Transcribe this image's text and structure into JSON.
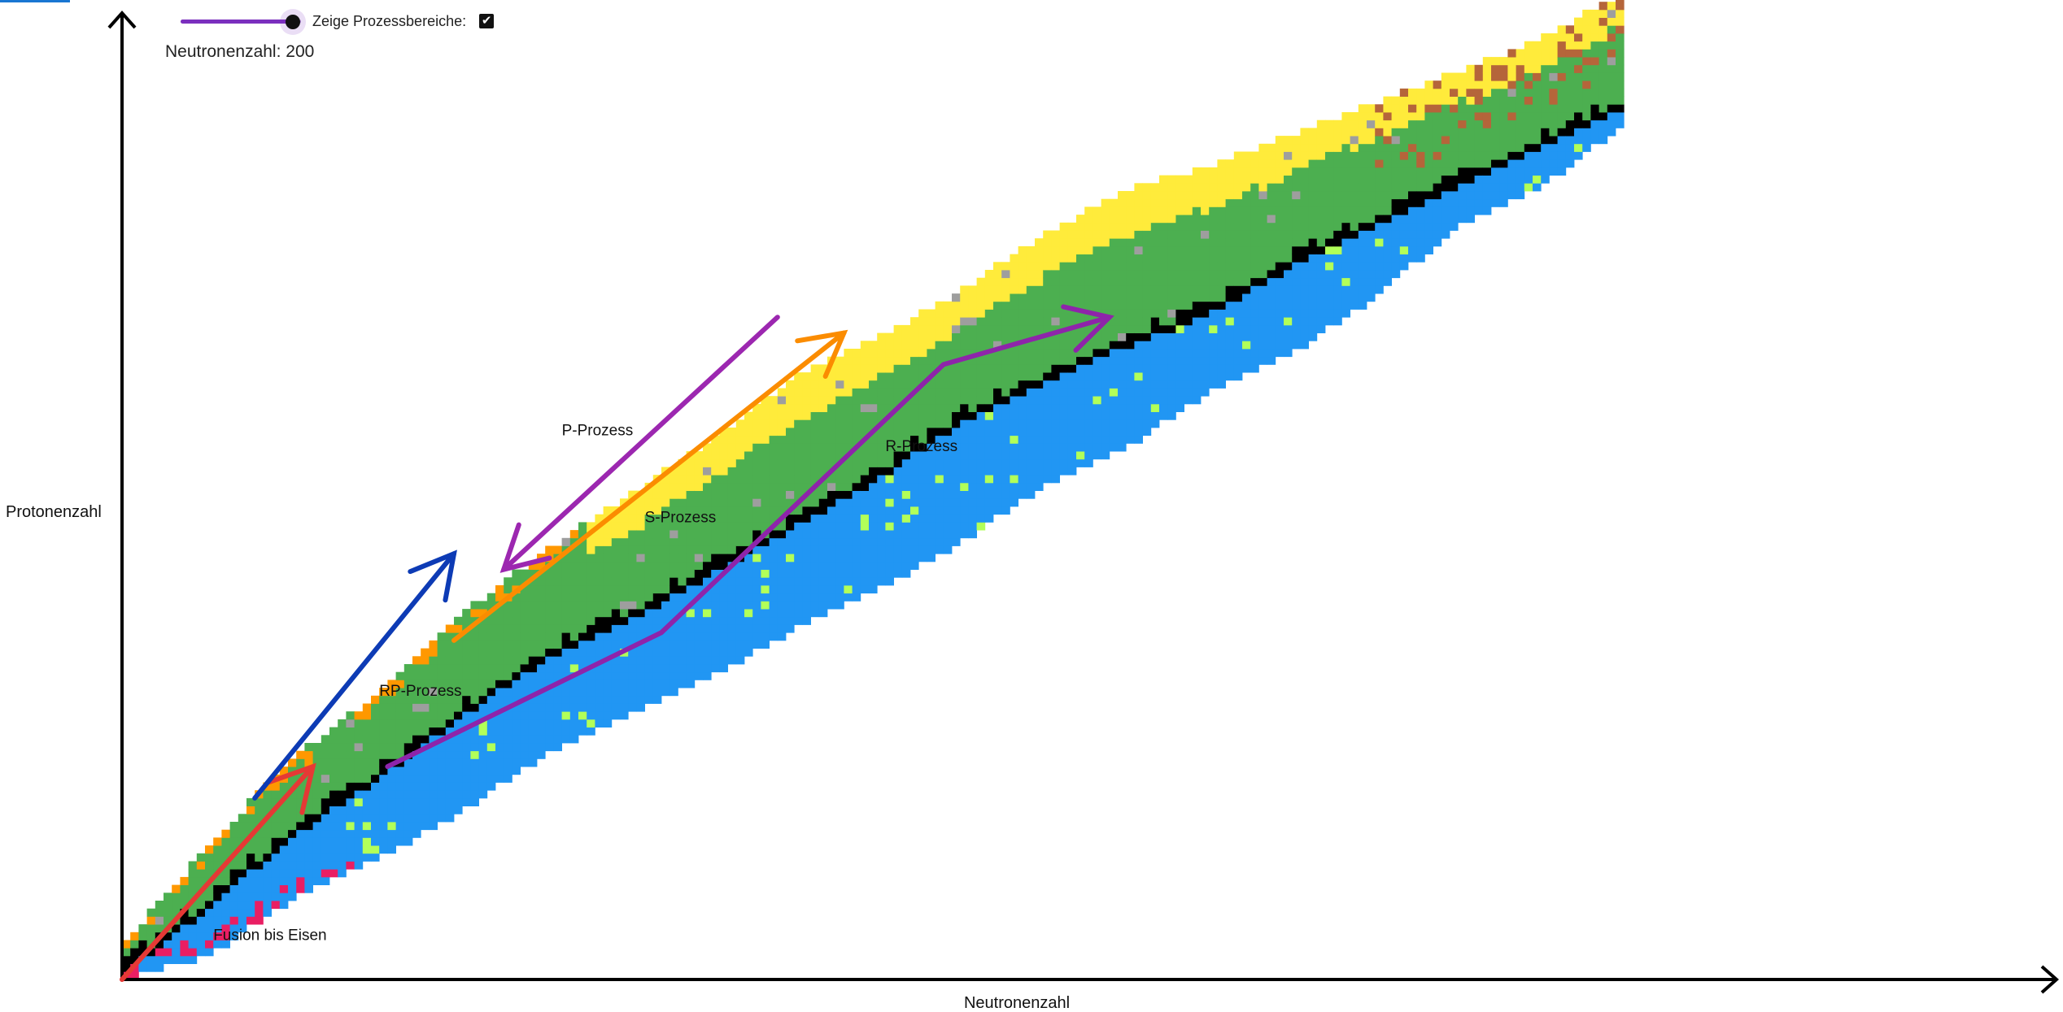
{
  "controls": {
    "neutron_slider": {
      "label": "Neutronenzahl",
      "value": 200,
      "min": 0,
      "max": 215
    },
    "status_text": "Neutronenzahl: 200",
    "process_toggle_label": "Zeige Prozessbereiche:",
    "process_toggle_checked": true
  },
  "colors": {
    "accent": "#7b2fbe",
    "stable": "#000000",
    "beta_minus": "#2196f3",
    "beta_plus": "#4caf50",
    "alpha": "#ffeb3b",
    "proton_emission": "#ff9800",
    "neutron_emission": "#e91e63",
    "fission": "#b5653a",
    "unknown": "#9e9e9e",
    "other": "#b2ff59"
  },
  "chart_data": {
    "type": "heatmap",
    "title": "",
    "xlabel": "Neutronenzahl",
    "ylabel": "Protonenzahl",
    "xlim": [
      0,
      190
    ],
    "ylim": [
      0,
      125
    ],
    "grid": false,
    "legend": "none",
    "band": [
      {
        "n": 0,
        "z_min": 0,
        "z_max": 4,
        "z_stable": 1
      },
      {
        "n": 10,
        "z_min": 3,
        "z_max": 16,
        "z_stable": 9
      },
      {
        "n": 20,
        "z_min": 10,
        "z_max": 27,
        "z_stable": 18
      },
      {
        "n": 30,
        "z_min": 15,
        "z_max": 35,
        "z_stable": 25
      },
      {
        "n": 40,
        "z_min": 21,
        "z_max": 45,
        "z_stable": 33
      },
      {
        "n": 50,
        "z_min": 28,
        "z_max": 53,
        "z_stable": 40
      },
      {
        "n": 60,
        "z_min": 33,
        "z_max": 60,
        "z_stable": 45
      },
      {
        "n": 70,
        "z_min": 38,
        "z_max": 67,
        "z_stable": 51
      },
      {
        "n": 80,
        "z_min": 44,
        "z_max": 75,
        "z_stable": 57
      },
      {
        "n": 90,
        "z_min": 49,
        "z_max": 80,
        "z_stable": 63
      },
      {
        "n": 100,
        "z_min": 55,
        "z_max": 86,
        "z_stable": 70
      },
      {
        "n": 110,
        "z_min": 62,
        "z_max": 93,
        "z_stable": 75
      },
      {
        "n": 120,
        "z_min": 67,
        "z_max": 99,
        "z_stable": 80
      },
      {
        "n": 130,
        "z_min": 74,
        "z_max": 102,
        "z_stable": 84
      },
      {
        "n": 140,
        "z_min": 79,
        "z_max": 106,
        "z_stable": 90
      },
      {
        "n": 150,
        "z_min": 86,
        "z_max": 110,
        "z_stable": 95
      },
      {
        "n": 160,
        "z_min": 95,
        "z_max": 114,
        "z_stable": 100
      },
      {
        "n": 170,
        "z_min": 100,
        "z_max": 118,
        "z_stable": 105
      },
      {
        "n": 180,
        "z_min": 108,
        "z_max": 124,
        "z_stable": 110
      }
    ],
    "processes": [
      {
        "name": "Fusion bis Eisen",
        "color": "#e53935",
        "label_at": [
          11,
          5
        ],
        "path": [
          [
            0,
            0
          ],
          [
            23,
            27
          ]
        ]
      },
      {
        "name": "RP-Prozess",
        "color": "#0d3bb5",
        "label_at": [
          31,
          36
        ],
        "path": [
          [
            16,
            23
          ],
          [
            40,
            54
          ]
        ]
      },
      {
        "name": "P-Prozess",
        "color": "#9c27b0",
        "label_at": [
          53,
          69
        ],
        "path": [
          [
            79,
            84
          ],
          [
            46,
            52
          ]
        ]
      },
      {
        "name": "S-Prozess",
        "color": "#fb8c00",
        "label_at": [
          63,
          58
        ],
        "path": [
          [
            40,
            43
          ],
          [
            87,
            82
          ]
        ]
      },
      {
        "name": "R-Prozess",
        "color": "#8e24aa",
        "label_at": [
          92,
          67
        ],
        "path": [
          [
            32,
            27
          ],
          [
            65,
            44
          ],
          [
            99,
            78
          ],
          [
            119,
            84
          ]
        ]
      }
    ]
  }
}
